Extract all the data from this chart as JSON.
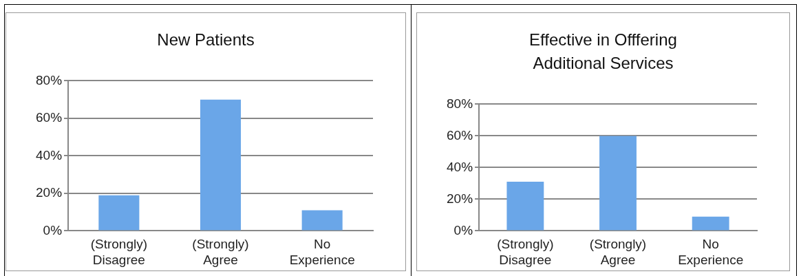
{
  "chart_data": [
    {
      "type": "bar",
      "title": "New Patients",
      "categories": [
        "(Strongly) Disagree",
        "(Strongly) Agree",
        "No Experience"
      ],
      "values": [
        19,
        70,
        11
      ],
      "color": "#6aa6e8",
      "ylim": [
        0,
        80
      ],
      "yticks": [
        {
          "value": 0,
          "label": "0%"
        },
        {
          "value": 20,
          "label": "20%"
        },
        {
          "value": 40,
          "label": "40%"
        },
        {
          "value": 60,
          "label": "60%"
        },
        {
          "value": 80,
          "label": "80%"
        }
      ],
      "grid": "y",
      "legend": false
    },
    {
      "type": "bar",
      "title": "Effective in Offfering Additional Services",
      "categories": [
        "(Strongly) Disagree",
        "(Strongly) Agree",
        "No Experience"
      ],
      "values": [
        31,
        60,
        9
      ],
      "color": "#6aa6e8",
      "ylim": [
        0,
        80
      ],
      "yticks": [
        {
          "value": 0,
          "label": "0%"
        },
        {
          "value": 20,
          "label": "20%"
        },
        {
          "value": 40,
          "label": "40%"
        },
        {
          "value": 60,
          "label": "60%"
        },
        {
          "value": 80,
          "label": "80%"
        }
      ],
      "grid": "y",
      "legend": false
    }
  ]
}
